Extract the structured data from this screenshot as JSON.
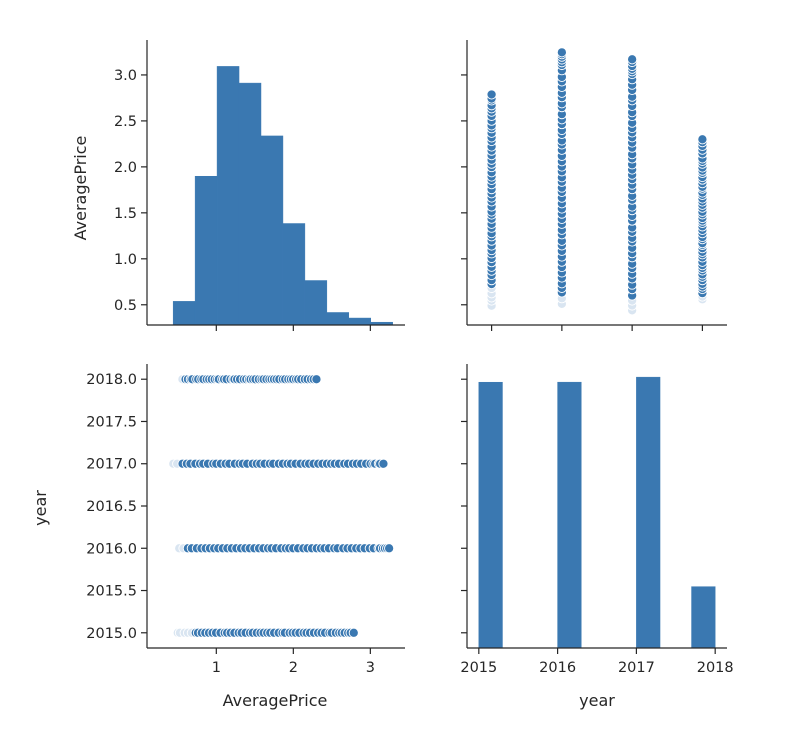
{
  "colors": {
    "marker": "#3a78b1",
    "edge": "#ffffff",
    "axis": "#262626"
  },
  "chart_data": [
    {
      "type": "bar",
      "panel": "AveragePrice vs AveragePrice (histogram)",
      "bins": [
        {
          "from": 0.44,
          "to": 0.725,
          "count": 170
        },
        {
          "from": 0.725,
          "to": 1.01,
          "count": 1070
        },
        {
          "from": 1.01,
          "to": 1.295,
          "count": 1860
        },
        {
          "from": 1.295,
          "to": 1.58,
          "count": 1740
        },
        {
          "from": 1.58,
          "to": 1.865,
          "count": 1360
        },
        {
          "from": 1.865,
          "to": 2.15,
          "count": 730
        },
        {
          "from": 2.15,
          "to": 2.435,
          "count": 320
        },
        {
          "from": 2.435,
          "to": 2.72,
          "count": 90
        },
        {
          "from": 2.72,
          "to": 3.005,
          "count": 50
        },
        {
          "from": 3.005,
          "to": 3.29,
          "count": 20
        }
      ],
      "xlim": [
        0.1,
        3.45
      ],
      "ylim": [
        0,
        2050
      ],
      "ylabel": "AveragePrice",
      "yticks": [
        "0.5",
        "1.0",
        "1.5",
        "2.0",
        "2.5",
        "3.0"
      ],
      "ytick_values": [
        0.5,
        1.0,
        1.5,
        2.0,
        2.5,
        3.0
      ],
      "price_axis_ylim": [
        0.28,
        3.38
      ]
    },
    {
      "type": "scatter",
      "panel": "year (x) vs AveragePrice (y)",
      "xlim": [
        2014.65,
        2018.35
      ],
      "ylim": [
        0.28,
        3.38
      ],
      "series": [
        {
          "x": 2015,
          "y_min": 0.49,
          "y_max": 2.79,
          "dense_max": 2.6,
          "solid_from": 0.7
        },
        {
          "x": 2016,
          "y_min": 0.51,
          "y_max": 3.25,
          "dense_max": 3.1,
          "solid_from": 0.6
        },
        {
          "x": 2017,
          "y_min": 0.44,
          "y_max": 3.17,
          "dense_max": 3.0,
          "solid_from": 0.55
        },
        {
          "x": 2018,
          "y_min": 0.56,
          "y_max": 2.3,
          "dense_max": 2.1,
          "solid_from": 0.6
        }
      ]
    },
    {
      "type": "scatter",
      "panel": "AveragePrice (x) vs year (y)",
      "xlim": [
        0.1,
        3.45
      ],
      "ylim": [
        2014.82,
        2018.18
      ],
      "ylabel": "year",
      "xlabel": "AveragePrice",
      "xticks": [
        "1",
        "2",
        "3"
      ],
      "xtick_values": [
        1,
        2,
        3
      ],
      "yticks": [
        "2015.0",
        "2015.5",
        "2016.0",
        "2016.5",
        "2017.0",
        "2017.5",
        "2018.0"
      ],
      "ytick_values": [
        2015.0,
        2015.5,
        2016.0,
        2016.5,
        2017.0,
        2017.5,
        2018.0
      ],
      "series": [
        {
          "y": 2015,
          "x_min": 0.49,
          "x_max": 2.79,
          "dense_max": 2.6,
          "solid_from": 0.7
        },
        {
          "y": 2016,
          "x_min": 0.51,
          "x_max": 3.25,
          "dense_max": 3.1,
          "solid_from": 0.6
        },
        {
          "y": 2017,
          "x_min": 0.44,
          "x_max": 3.17,
          "dense_max": 3.0,
          "solid_from": 0.55
        },
        {
          "y": 2018,
          "x_min": 0.56,
          "x_max": 2.3,
          "dense_max": 2.1,
          "solid_from": 0.6
        }
      ]
    },
    {
      "type": "bar",
      "panel": "year vs year (histogram)",
      "bins": [
        {
          "from": 2015.0,
          "to": 2015.3,
          "count": 5615
        },
        {
          "from": 2016.0,
          "to": 2016.3,
          "count": 5616
        },
        {
          "from": 2017.0,
          "to": 2017.3,
          "count": 5722
        },
        {
          "from": 2017.7,
          "to": 2018.0,
          "count": 1296
        }
      ],
      "xlim": [
        2014.85,
        2018.15
      ],
      "ylim": [
        0,
        6000
      ],
      "xlabel": "year",
      "xticks": [
        "2015",
        "2016",
        "2017",
        "2018"
      ],
      "xtick_values": [
        2015,
        2016,
        2017,
        2018
      ]
    }
  ],
  "labels": {
    "price_ylabel": "AveragePrice",
    "year_ylabel": "year",
    "price_xlabel": "AveragePrice",
    "year_xlabel": "year"
  }
}
